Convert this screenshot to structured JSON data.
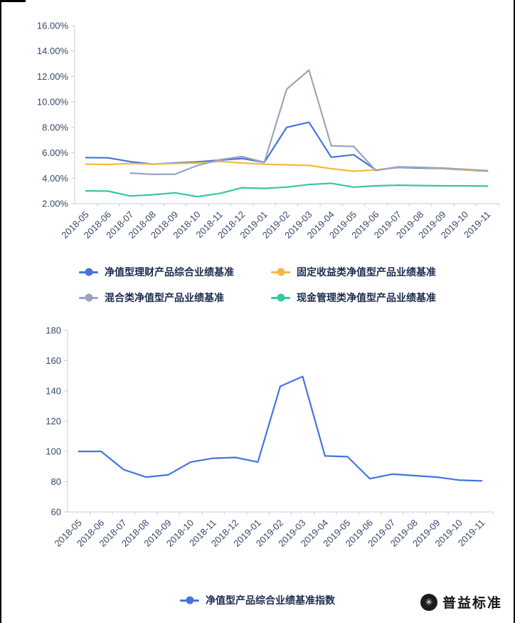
{
  "chart_data": [
    {
      "type": "line",
      "title": "",
      "xlabel": "",
      "ylabel": "",
      "grid": false,
      "legend_position": "bottom",
      "categories": [
        "2018-05",
        "2018-06",
        "2018-07",
        "2018-08",
        "2018-09",
        "2018-10",
        "2018-11",
        "2018-12",
        "2019-01",
        "2019-02",
        "2019-03",
        "2019-04",
        "2019-05",
        "2019-06",
        "2019-07",
        "2019-08",
        "2019-09",
        "2019-10",
        "2019-11"
      ],
      "y_axis": {
        "min": 2,
        "max": 16,
        "tick_values": [
          2,
          4,
          6,
          8,
          10,
          12,
          14,
          16
        ],
        "tick_labels": [
          "2.00%",
          "4.00%",
          "6.00%",
          "8.00%",
          "10.00%",
          "12.00%",
          "14.00%",
          "16.00%"
        ]
      },
      "series": [
        {
          "name": "净值型理财产品综合业绩基准",
          "color": "#4574dd",
          "values": [
            5.62,
            5.6,
            5.3,
            5.1,
            5.2,
            5.28,
            5.42,
            5.55,
            5.25,
            8.0,
            8.4,
            5.65,
            5.85,
            4.65,
            4.85,
            4.8,
            4.75,
            4.65,
            4.55
          ]
        },
        {
          "name": "固定收益类净值型产品业绩基准",
          "color": "#f6b93d",
          "values": [
            5.1,
            5.08,
            5.15,
            5.1,
            5.15,
            5.2,
            5.32,
            5.2,
            5.1,
            5.05,
            5.0,
            4.75,
            4.55,
            4.65,
            4.88,
            4.85,
            4.75,
            4.65,
            4.55
          ]
        },
        {
          "name": "混合类净值型产品业绩基准",
          "color": "#9aa4bf",
          "values": [
            null,
            null,
            4.4,
            4.3,
            4.32,
            5.0,
            5.45,
            5.7,
            5.25,
            11.0,
            12.5,
            6.55,
            6.5,
            4.6,
            4.9,
            4.85,
            4.8,
            4.7,
            4.6
          ]
        },
        {
          "name": "现金管理类净值型产品业绩基准",
          "color": "#36c6a5",
          "values": [
            3.0,
            2.98,
            2.6,
            2.7,
            2.85,
            2.55,
            2.8,
            3.25,
            3.2,
            3.3,
            3.5,
            3.6,
            3.3,
            3.4,
            3.45,
            3.42,
            3.4,
            3.4,
            3.38
          ]
        }
      ]
    },
    {
      "type": "line",
      "title": "",
      "xlabel": "",
      "ylabel": "",
      "grid": false,
      "legend_position": "bottom",
      "categories": [
        "2018-05",
        "2018-06",
        "2018-07",
        "2018-08",
        "2018-09",
        "2018-10",
        "2018-11",
        "2018-12",
        "2019-01",
        "2019-02",
        "2019-03",
        "2019-04",
        "2019-05",
        "2019-06",
        "2019-07",
        "2019-08",
        "2019-09",
        "2019-10",
        "2019-11"
      ],
      "y_axis": {
        "min": 60,
        "max": 180,
        "tick_values": [
          60,
          80,
          100,
          120,
          140,
          160,
          180
        ],
        "tick_labels": [
          "60",
          "80",
          "100",
          "120",
          "140",
          "160",
          "180"
        ]
      },
      "series": [
        {
          "name": "净值型产品综合业绩基准指数",
          "color": "#4574dd",
          "values": [
            100,
            100,
            88,
            83,
            84.5,
            93,
            95.5,
            96,
            93,
            143,
            149.5,
            97,
            96.5,
            82,
            85,
            84,
            83,
            81,
            80.5
          ]
        }
      ]
    }
  ],
  "footer": {
    "brand": "普益标准"
  }
}
